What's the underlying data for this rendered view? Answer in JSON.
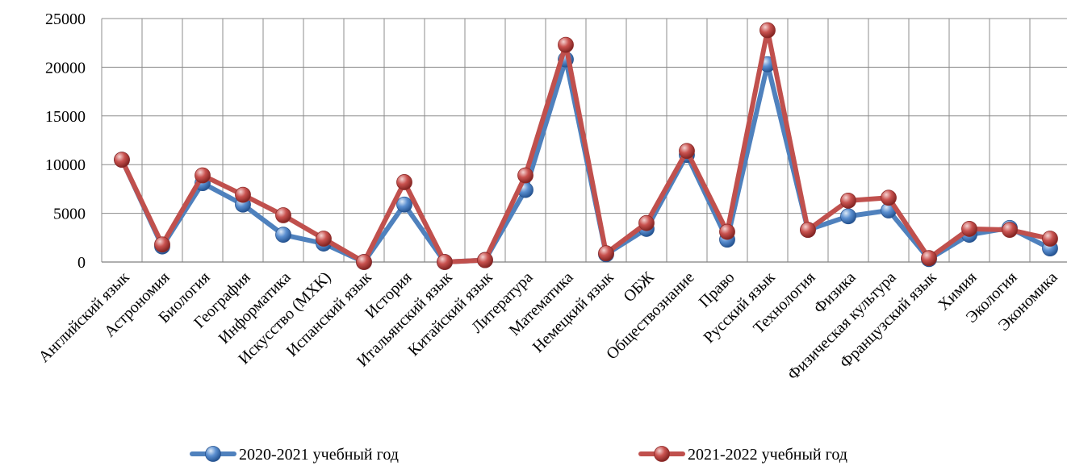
{
  "chart_data": {
    "type": "line",
    "categories": [
      "Английский язык",
      "Астрономия",
      "Биология",
      "География",
      "Информатика",
      "Искусство (МХК)",
      "Испанский язык",
      "История",
      "Итальянский язык",
      "Китайский язык",
      "Литература",
      "Математика",
      "Немецкий язык",
      "ОБЖ",
      "Обществознание",
      "Право",
      "Русский язык",
      "Технология",
      "Физика",
      "Физическая культура",
      "Французский язык",
      "Химия",
      "Экология",
      "Экономика"
    ],
    "series": [
      {
        "name": "2020-2021 учебный год",
        "color": "#4f81bd",
        "values": [
          10500,
          1600,
          8100,
          5900,
          2800,
          1900,
          0,
          5900,
          0,
          200,
          7400,
          20800,
          800,
          3400,
          11000,
          2300,
          20300,
          3300,
          4700,
          5300,
          300,
          2800,
          3500,
          1400
        ]
      },
      {
        "name": "2021-2022 учебный год",
        "color": "#c0504d",
        "values": [
          10500,
          1800,
          8900,
          6900,
          4800,
          2400,
          0,
          8200,
          0,
          200,
          8900,
          22300,
          900,
          4000,
          11400,
          3100,
          23800,
          3300,
          6300,
          6600,
          400,
          3400,
          3300,
          2400
        ]
      }
    ],
    "y_ticks": [
      "0",
      "5000",
      "10000",
      "15000",
      "20000",
      "25000"
    ],
    "ylim": [
      0,
      25000
    ],
    "grid": true,
    "legend_position": "bottom",
    "title": "",
    "xlabel": "",
    "ylabel": ""
  }
}
